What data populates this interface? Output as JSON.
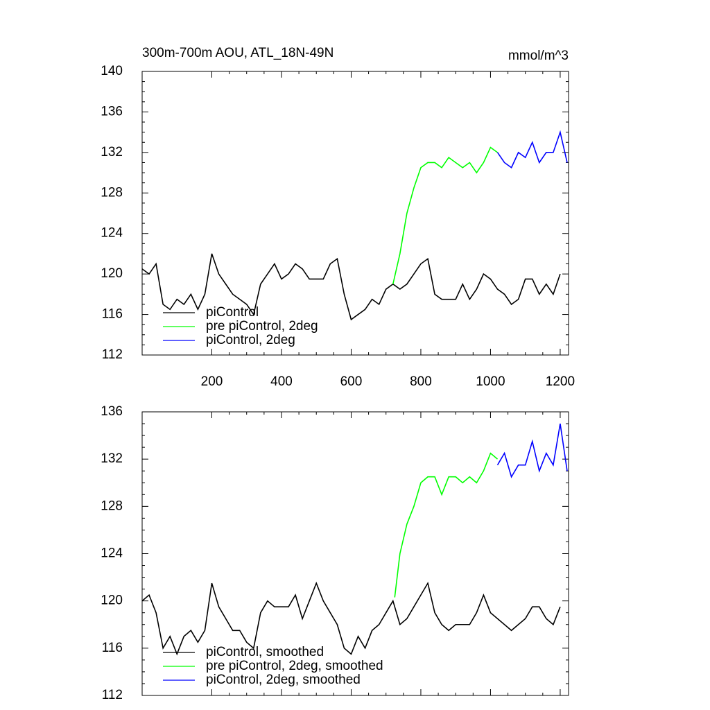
{
  "chart_data": [
    {
      "type": "line",
      "title": "300m-700m AOU, ATL_18N-49N",
      "subtitle": "mmol/m^3",
      "xlim": [
        0,
        1224
      ],
      "xticks": [
        200,
        400,
        600,
        800,
        1000,
        1200
      ],
      "ylim": [
        112,
        140
      ],
      "yticks": [
        112,
        116,
        120,
        124,
        128,
        132,
        136,
        140
      ],
      "series": [
        {
          "name": "piControl",
          "color": "#000000",
          "x": [
            0,
            20,
            40,
            60,
            80,
            100,
            120,
            140,
            160,
            180,
            200,
            220,
            240,
            260,
            280,
            300,
            320,
            340,
            360,
            380,
            400,
            420,
            440,
            460,
            480,
            500,
            520,
            540,
            560,
            580,
            600,
            620,
            640,
            660,
            680,
            700,
            720,
            740,
            760,
            780,
            800,
            820,
            840,
            860,
            880,
            900,
            920,
            940,
            960,
            980,
            1000,
            1020,
            1040,
            1060,
            1080,
            1100,
            1120,
            1140,
            1160,
            1180,
            1200
          ],
          "values": [
            120.5,
            120,
            121,
            117,
            116.5,
            117.5,
            117,
            118,
            116.5,
            118,
            122,
            120,
            119,
            118,
            117.5,
            117,
            116,
            119,
            120,
            121,
            119.5,
            120,
            121,
            120.5,
            119.5,
            119.5,
            119.5,
            121,
            121.5,
            118,
            115.5,
            116,
            116.5,
            117.5,
            117,
            118.5,
            119,
            118.5,
            119,
            120,
            121,
            121.5,
            118,
            117.5,
            117.5,
            117.5,
            119,
            117.5,
            118.5,
            120,
            119.5,
            118.5,
            118,
            117,
            117.5,
            119.5,
            119.5,
            118,
            119,
            118,
            120
          ]
        },
        {
          "name": "pre piControl, 2deg",
          "color": "#00ff00",
          "x": [
            720,
            740,
            760,
            780,
            800,
            820,
            840,
            860,
            880,
            900,
            920,
            940,
            960,
            980,
            1000,
            1020
          ],
          "values": [
            119,
            122,
            126,
            128.5,
            130.5,
            131,
            131,
            130.5,
            131.5,
            131,
            130.5,
            131,
            130,
            131,
            132.5,
            132
          ]
        },
        {
          "name": "piControl, 2deg",
          "color": "#0000ff",
          "x": [
            1020,
            1040,
            1060,
            1080,
            1100,
            1120,
            1140,
            1160,
            1180,
            1200,
            1220
          ],
          "values": [
            132,
            131,
            130.5,
            132,
            131.5,
            133,
            131,
            132,
            132,
            134,
            131
          ]
        }
      ]
    },
    {
      "type": "line",
      "xlim": [
        0,
        1224
      ],
      "ylim": [
        112,
        136
      ],
      "yticks": [
        112,
        116,
        120,
        124,
        128,
        132,
        136
      ],
      "series": [
        {
          "name": "piControl, smoothed",
          "color": "#000000",
          "x": [
            0,
            20,
            40,
            60,
            80,
            100,
            120,
            140,
            160,
            180,
            200,
            220,
            240,
            260,
            280,
            300,
            320,
            340,
            360,
            380,
            400,
            420,
            440,
            460,
            480,
            500,
            520,
            540,
            560,
            580,
            600,
            620,
            640,
            660,
            680,
            700,
            720,
            740,
            760,
            780,
            800,
            820,
            840,
            860,
            880,
            900,
            920,
            940,
            960,
            980,
            1000,
            1020,
            1040,
            1060,
            1080,
            1100,
            1120,
            1140,
            1160,
            1180,
            1200
          ],
          "values": [
            120,
            120.5,
            119,
            116,
            117,
            115.5,
            117,
            117.5,
            116.5,
            117.5,
            121.5,
            119.5,
            118.5,
            117.5,
            117.5,
            116.5,
            116,
            119,
            120,
            119.5,
            119.5,
            119.5,
            120.5,
            118.5,
            120,
            121.5,
            120,
            119,
            118,
            116,
            115.5,
            117,
            116,
            117.5,
            118,
            119,
            120,
            118,
            118.5,
            119.5,
            120.5,
            121.5,
            119,
            118,
            117.5,
            118,
            118,
            118,
            119,
            120.5,
            119,
            118.5,
            118,
            117.5,
            118,
            118.5,
            119.5,
            119.5,
            118.5,
            118,
            119.5
          ]
        },
        {
          "name": "pre piControl, 2deg, smoothed",
          "color": "#00ff00",
          "x": [
            725,
            740,
            760,
            780,
            800,
            820,
            840,
            860,
            880,
            900,
            920,
            940,
            960,
            980,
            1000,
            1020
          ],
          "values": [
            120.3,
            124,
            126.5,
            128,
            130,
            130.5,
            130.5,
            129,
            130.5,
            130.5,
            130,
            130.5,
            130,
            131,
            132.5,
            132
          ]
        },
        {
          "name": "piControl, 2deg, smoothed",
          "color": "#0000ff",
          "x": [
            1020,
            1040,
            1060,
            1080,
            1100,
            1120,
            1140,
            1160,
            1180,
            1200,
            1220
          ],
          "values": [
            131.5,
            132.5,
            130.5,
            131.5,
            131.5,
            133.5,
            131,
            132.5,
            131.5,
            135,
            131
          ]
        }
      ]
    }
  ]
}
